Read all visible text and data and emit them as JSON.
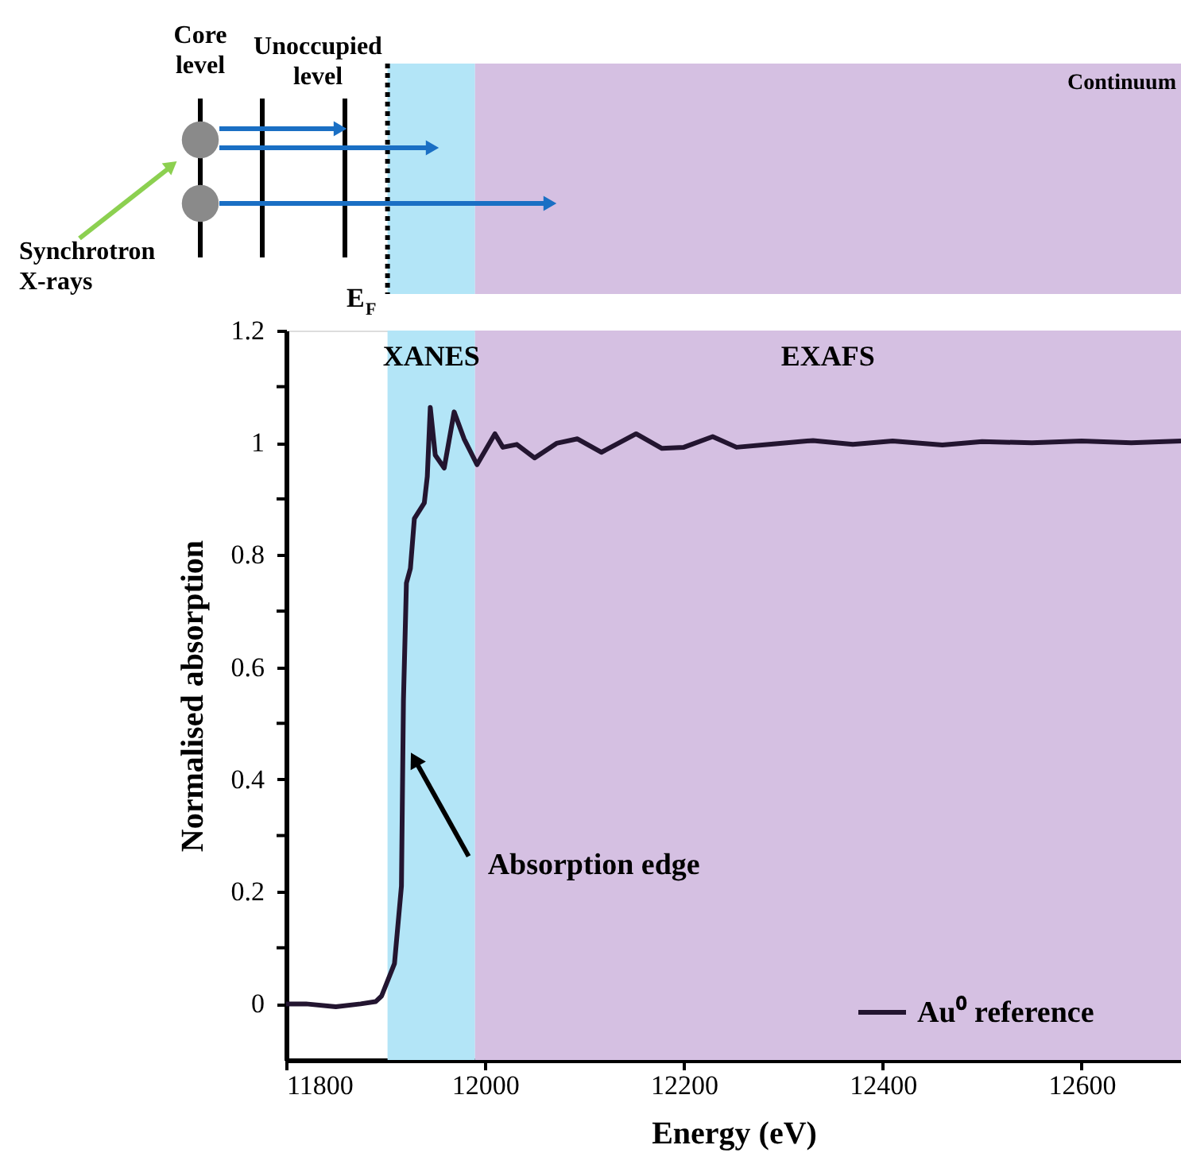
{
  "chart_data": {
    "type": "line",
    "xlabel": "Energy (eV)",
    "ylabel": "Normalised absorption",
    "xlim": [
      11800,
      12700
    ],
    "ylim": [
      -0.1,
      1.2
    ],
    "xticks": [
      11800,
      12000,
      12200,
      12400,
      12600
    ],
    "yticks": [
      0,
      {
        "value": 0.1,
        "label": null
      },
      0.2,
      {
        "value": 0.3,
        "label": null
      },
      0.4,
      {
        "value": 0.5,
        "label": null
      },
      0.6,
      {
        "value": 0.7,
        "label": null
      },
      0.8,
      {
        "value": 0.9,
        "label": null
      },
      1,
      {
        "value": 1.1,
        "label": null
      },
      1.2
    ],
    "grid": false,
    "legend": "bottom right",
    "marker": "none",
    "line_style": "solid",
    "bands": [
      {
        "axis": "x",
        "from": 11902,
        "to": 11990,
        "label": "XANES",
        "color": "#b3e5f7"
      },
      {
        "axis": "x",
        "from": 11990,
        "to": 12700,
        "label": "EXAFS",
        "color": "#d5c0e2"
      }
    ],
    "annotations": [
      "Core level",
      "Unoccupied level",
      "E$_{F}$",
      "Synchrotron X-rays",
      "Continuum",
      {
        "text": "Absorption edge",
        "x": 11926,
        "y": 0.45
      }
    ],
    "x": [
      11800,
      11820,
      11850,
      11875,
      11890,
      11896,
      11909,
      11916,
      11918,
      11921,
      11925,
      11929,
      11939,
      11942,
      11945,
      11950,
      11959,
      11969,
      11979,
      11992,
      12010,
      12018,
      12032,
      12050,
      12072,
      12093,
      12117,
      12152,
      12178,
      12200,
      12229,
      12253,
      12290,
      12330,
      12370,
      12410,
      12460,
      12500,
      12550,
      12600,
      12650,
      12700
    ],
    "series": [
      {
        "name": "Au⁰ reference",
        "color": "#231530",
        "values": [
          0,
          0,
          -0.005,
          0,
          0.004,
          0.014,
          0.072,
          0.21,
          0.54,
          0.75,
          0.776,
          0.865,
          0.893,
          0.94,
          1.063,
          0.978,
          0.955,
          1.055,
          1.007,
          0.961,
          1.016,
          0.992,
          0.997,
          0.973,
          0.999,
          1.007,
          0.983,
          1.016,
          0.99,
          0.992,
          1.011,
          0.992,
          0.998,
          1.004,
          0.997,
          1.003,
          0.996,
          1.002,
          1.0,
          1.003,
          1.0,
          1.003
        ]
      }
    ]
  }
}
